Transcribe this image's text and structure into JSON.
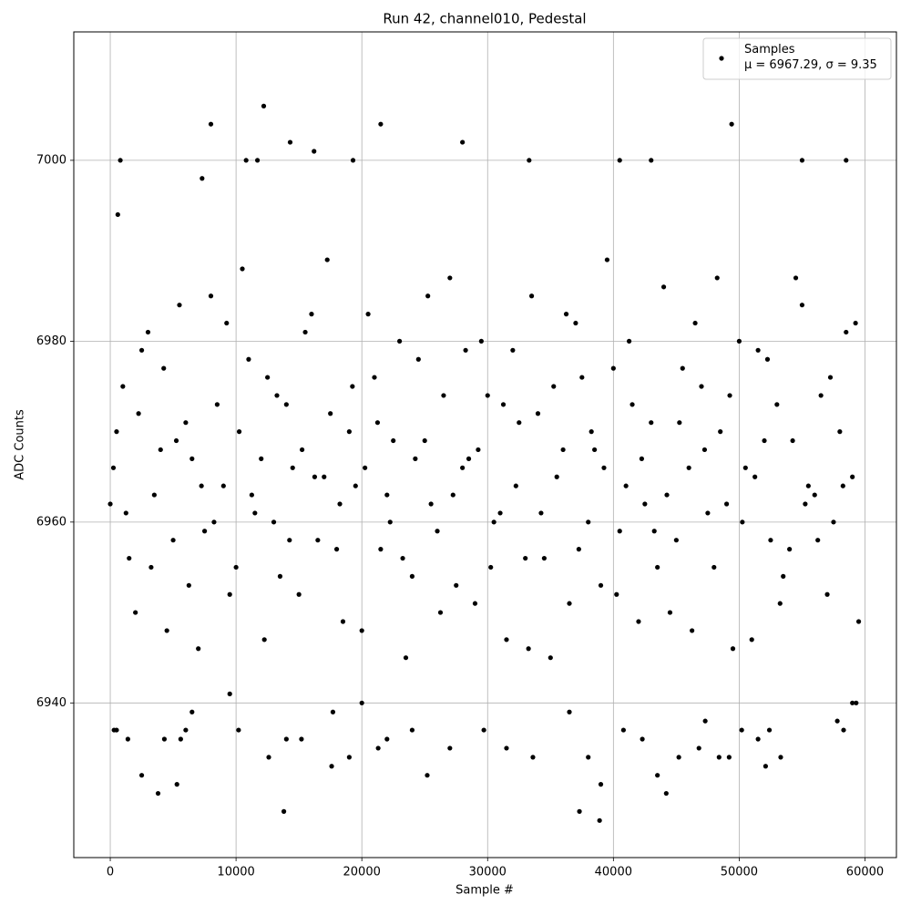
{
  "chart_data": {
    "type": "scatter",
    "title": "Run 42, channel010, Pedestal",
    "x_label": "Sample #",
    "y_label": "ADC Counts",
    "xlim": [
      -2900,
      62500
    ],
    "ylim": [
      6922.9,
      7014.2
    ],
    "xticks": [
      0,
      10000,
      20000,
      30000,
      40000,
      50000,
      60000
    ],
    "yticks": [
      6940,
      6960,
      6980,
      7000
    ],
    "grid": true,
    "legend": "upper right",
    "series": [
      {
        "name": "Samples\nμ = 6967.29, σ = 9.35",
        "color": "#000000",
        "x": [
          300,
          500,
          800,
          600,
          1400,
          2500,
          3800,
          5300,
          8000,
          7300,
          12200,
          11700,
          10800,
          14300,
          13800,
          16200,
          19300,
          17600,
          19000,
          21500,
          21300,
          25200,
          28000,
          33300,
          37300,
          38900,
          39000,
          40500,
          43000,
          43500,
          44200,
          49400,
          52100,
          55000,
          58500,
          53300,
          48400,
          49200,
          45200,
          46800,
          10200,
          12600,
          14000,
          15200,
          22000,
          27000,
          29700,
          31500,
          33600,
          36500,
          38000,
          40800,
          42300,
          47300,
          50200,
          51500,
          52400,
          57800,
          58300,
          59000,
          59300,
          4300,
          5600,
          6000,
          6500,
          9500,
          17700,
          20000,
          24000,
          0,
          1000,
          2000,
          3000,
          4000,
          5000,
          6000,
          7000,
          8000,
          9000,
          10000,
          11000,
          12000,
          13000,
          14000,
          15000,
          16000,
          17000,
          18000,
          19000,
          20000,
          21000,
          22000,
          23000,
          24000,
          25000,
          26000,
          27000,
          28000,
          29000,
          30000,
          31000,
          32000,
          33000,
          34000,
          35000,
          36000,
          37000,
          38000,
          39000,
          40000,
          41000,
          42000,
          43000,
          44000,
          45000,
          46000,
          47000,
          48000,
          49000,
          50000,
          51000,
          52000,
          53000,
          54000,
          55000,
          56000,
          57000,
          58000,
          59000,
          500,
          1500,
          2500,
          3500,
          4500,
          5500,
          6500,
          7500,
          8500,
          9500,
          10500,
          11500,
          12500,
          13500,
          14500,
          15500,
          16500,
          17500,
          18500,
          19500,
          20500,
          21500,
          22500,
          23500,
          24500,
          25500,
          26500,
          27500,
          28500,
          29500,
          30500,
          31500,
          32500,
          33500,
          34500,
          35500,
          36500,
          37500,
          38500,
          39500,
          40500,
          41500,
          42500,
          43500,
          44500,
          45500,
          46500,
          47500,
          48500,
          49500,
          50500,
          51500,
          52500,
          53500,
          54500,
          55500,
          56500,
          57500,
          58500,
          59500,
          250,
          1250,
          2250,
          3250,
          4250,
          5250,
          6250,
          7250,
          8250,
          9250,
          10250,
          11250,
          12250,
          13250,
          14250,
          15250,
          16250,
          17250,
          18250,
          19250,
          20250,
          21250,
          22250,
          23250,
          24250,
          25250,
          26250,
          27250,
          28250,
          29250,
          30250,
          31250,
          32250,
          33250,
          34250,
          35250,
          36250,
          37250,
          38250,
          39250,
          40250,
          41250,
          42250,
          43250,
          44250,
          45250,
          46250,
          47250,
          48250,
          49250,
          50250,
          51250,
          52250,
          53250,
          54250,
          55250,
          56250,
          57250,
          58250,
          59250
        ],
        "values": [
          6937,
          6937,
          7000,
          6994,
          6936,
          6932,
          6930,
          6931,
          7004,
          6998,
          7006,
          7000,
          7000,
          7002,
          6928,
          7001,
          7000,
          6933,
          6934,
          7004,
          6935,
          6932,
          7002,
          7000,
          6928,
          6927,
          6931,
          7000,
          7000,
          6932,
          6930,
          7004,
          6933,
          7000,
          7000,
          6934,
          6934,
          6934,
          6934,
          6935,
          6937,
          6934,
          6936,
          6936,
          6936,
          6935,
          6937,
          6935,
          6934,
          6939,
          6934,
          6937,
          6936,
          6938,
          6937,
          6936,
          6937,
          6938,
          6937,
          6940,
          6940,
          6936,
          6936,
          6937,
          6939,
          6941,
          6939,
          6940,
          6937,
          6962,
          6975,
          6950,
          6981,
          6968,
          6958,
          6971,
          6946,
          6985,
          6964,
          6955,
          6978,
          6967,
          6960,
          6973,
          6952,
          6983,
          6965,
          6957,
          6970,
          6948,
          6976,
          6963,
          6980,
          6954,
          6969,
          6959,
          6987,
          6966,
          6951,
          6974,
          6961,
          6979,
          6956,
          6972,
          6945,
          6968,
          6982,
          6960,
          6953,
          6977,
          6964,
          6949,
          6971,
          6986,
          6958,
          6966,
          6975,
          6955,
          6962,
          6980,
          6947,
          6969,
          6973,
          6957,
          6984,
          6963,
          6952,
          6970,
          6965,
          6970,
          6956,
          6979,
          6963,
          6948,
          6984,
          6967,
          6959,
          6973,
          6952,
          6988,
          6961,
          6976,
          6954,
          6966,
          6981,
          6958,
          6972,
          6949,
          6964,
          6983,
          6957,
          6969,
          6945,
          6978,
          6962,
          6974,
          6953,
          6967,
          6980,
          6960,
          6947,
          6971,
          6985,
          6956,
          6965,
          6951,
          6976,
          6968,
          6989,
          6959,
          6973,
          6962,
          6955,
          6950,
          6977,
          6982,
          6961,
          6970,
          6946,
          6966,
          6979,
          6958,
          6954,
          6987,
          6964,
          6974,
          6960,
          6981,
          6949,
          6966,
          6961,
          6972,
          6955,
          6977,
          6969,
          6953,
          6964,
          6960,
          6982,
          6970,
          6963,
          6947,
          6974,
          6958,
          6968,
          6965,
          6989,
          6962,
          6975,
          6966,
          6971,
          6960,
          6956,
          6967,
          6985,
          6950,
          6963,
          6979,
          6968,
          6955,
          6973,
          6964,
          6946,
          6961,
          6975,
          6983,
          6957,
          6970,
          6966,
          6952,
          6980,
          6967,
          6959,
          6963,
          6971,
          6948,
          6968,
          6987,
          6974,
          6960,
          6965,
          6978,
          6951,
          6969,
          6962,
          6958,
          6976,
          6964,
          6982
        ]
      }
    ]
  }
}
